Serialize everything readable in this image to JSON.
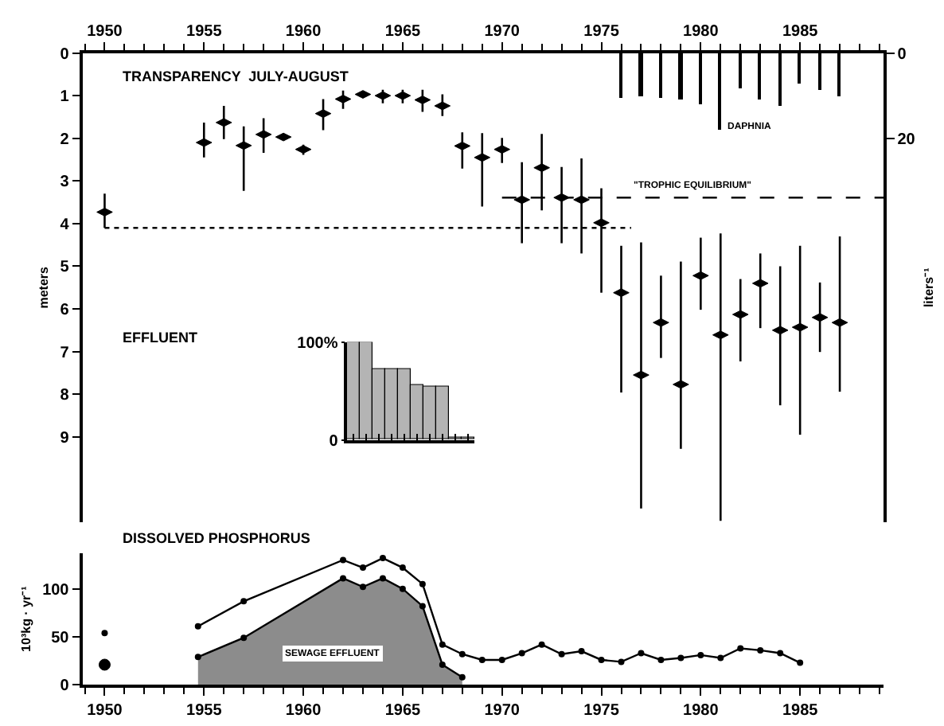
{
  "chart_data": [
    {
      "type": "scatter",
      "title": "TRANSPARENCY  JULY-AUGUST",
      "annotations": [
        "EFFLUENT"
      ],
      "marker": "diamond",
      "ylabel": "meters",
      "y2label": "liters⁻¹",
      "xlim": [
        1948.9,
        1989.2
      ],
      "xticks": [
        1950,
        1955,
        1960,
        1965,
        1970,
        1975,
        1980,
        1985
      ],
      "ylim": [
        11,
        0
      ],
      "yticks": [
        0,
        1,
        2,
        3,
        4,
        5,
        6,
        7,
        8,
        9
      ],
      "y2lim": [
        110,
        0
      ],
      "y2ticks": [
        0,
        20
      ],
      "series": [
        {
          "color": "#000000",
          "x": [
            1950,
            1955,
            1956,
            1957,
            1958,
            1959,
            1960,
            1961,
            1962,
            1963,
            1964,
            1965,
            1966,
            1967,
            1968,
            1969,
            1970,
            1971,
            1972,
            1973,
            1974,
            1975,
            1976,
            1977,
            1978,
            1979,
            1980,
            1981,
            1982,
            1983,
            1984,
            1985,
            1986,
            1987
          ],
          "values": [
            3.73,
            2.1,
            1.63,
            2.17,
            1.91,
            1.97,
            2.26,
            1.42,
            1.08,
            0.97,
            1.0,
            1.0,
            1.1,
            1.24,
            2.18,
            2.45,
            2.26,
            3.44,
            2.69,
            3.39,
            3.44,
            3.98,
            5.62,
            7.55,
            6.32,
            7.77,
            5.22,
            6.61,
            6.13,
            5.4,
            6.5,
            6.43,
            6.2,
            6.32
          ],
          "errors": [
            [
              3.3,
              4.1
            ],
            [
              1.63,
              2.45
            ],
            [
              1.24,
              2.02
            ],
            [
              1.72,
              3.23
            ],
            [
              1.53,
              2.34
            ],
            null,
            [
              2.15,
              2.39
            ],
            [
              1.08,
              1.81
            ],
            [
              0.88,
              1.31
            ],
            [
              0.9,
              1.02
            ],
            [
              0.86,
              1.18
            ],
            [
              0.86,
              1.18
            ],
            [
              0.86,
              1.38
            ],
            [
              0.97,
              1.48
            ],
            [
              1.86,
              2.71
            ],
            [
              1.88,
              3.6
            ],
            [
              1.99,
              2.58
            ],
            [
              2.56,
              4.46
            ],
            [
              1.9,
              3.69
            ],
            [
              2.67,
              4.46
            ],
            [
              2.47,
              4.7
            ],
            [
              3.17,
              5.62
            ],
            [
              4.52,
              7.96
            ],
            [
              4.44,
              10.68
            ],
            [
              5.22,
              7.15
            ],
            [
              4.89,
              9.28
            ],
            [
              4.33,
              6.02
            ],
            [
              4.23,
              10.97
            ],
            [
              5.3,
              7.23
            ],
            [
              4.7,
              6.45
            ],
            [
              5.0,
              8.26
            ],
            [
              4.52,
              8.95
            ],
            [
              5.38,
              7.01
            ],
            [
              4.3,
              7.94
            ]
          ]
        },
        {
          "type": "bar",
          "name": "DAPHNIA",
          "axis": "y2",
          "color": "#000000",
          "x": [
            1976,
            1977,
            1978,
            1979,
            1980,
            1981,
            1982,
            1983,
            1984,
            1985,
            1986,
            1987
          ],
          "values": [
            10.5,
            10.2,
            10.5,
            10.8,
            12.0,
            18.1,
            8.3,
            11.0,
            12.4,
            7.2,
            8.6,
            10.0
          ]
        },
        {
          "type": "line",
          "marker": "none",
          "line_style": "dotted",
          "color": "#000000",
          "x": [
            1950,
            1976.5
          ],
          "values": [
            4.1,
            4.1
          ]
        },
        {
          "type": "line",
          "marker": "none",
          "name": "\"TROPHIC EQUILIBRIUM\"",
          "line_style": "dashed",
          "color": "#000000",
          "x": [
            1970,
            1989.2
          ],
          "values": [
            3.39,
            3.39
          ]
        }
      ]
    },
    {
      "type": "bar",
      "categories": [
        null,
        null,
        null,
        null,
        null,
        null,
        null,
        null,
        null,
        null
      ],
      "values": [
        100,
        100,
        73,
        73,
        73,
        56,
        55,
        55,
        3,
        3
      ],
      "color": "#b4b4b4",
      "ylim": [
        0,
        100
      ],
      "yticks": [
        {
          "value": 100,
          "label": "100%"
        },
        0
      ],
      "tick_labels": "y"
    },
    {
      "type": "line",
      "title": "DISSOLVED PHOSPHORUS",
      "ylabel": "10³kg · yr⁻¹",
      "xlim": [
        1948.9,
        1989.2
      ],
      "xticks": [
        1950,
        1955,
        1960,
        1965,
        1970,
        1975,
        1980,
        1985
      ],
      "ylim": [
        0,
        137
      ],
      "yticks": [
        0,
        50,
        100
      ],
      "marker": "circle",
      "series": [
        {
          "color": "#000000",
          "x": [
            1950,
            1952,
            1954.7,
            1957,
            1962,
            1963,
            1964,
            1965,
            1966,
            1967,
            1968,
            1969,
            1970,
            1971,
            1972,
            1973,
            1974,
            1975,
            1976,
            1977,
            1978,
            1979,
            1980,
            1981,
            1982,
            1983,
            1984,
            1985
          ],
          "values": [
            54,
            null,
            61,
            87,
            130,
            122,
            132,
            122,
            105,
            42,
            32,
            26,
            26,
            33,
            42,
            32,
            35,
            26,
            24,
            33,
            26,
            28,
            31,
            28,
            38,
            36,
            33,
            23
          ]
        },
        {
          "type": "area",
          "name": "SEWAGE EFFLUENT",
          "color": "#8c8c8c",
          "x": [
            1954.7,
            1957,
            1962,
            1963,
            1964,
            1965,
            1966,
            1967,
            1968
          ],
          "values": [
            29,
            49,
            111,
            102,
            111,
            100,
            82,
            21,
            8
          ]
        },
        {
          "type": "scatter",
          "color": "#000000",
          "x": [
            1950
          ],
          "values": [
            21
          ]
        }
      ]
    }
  ]
}
